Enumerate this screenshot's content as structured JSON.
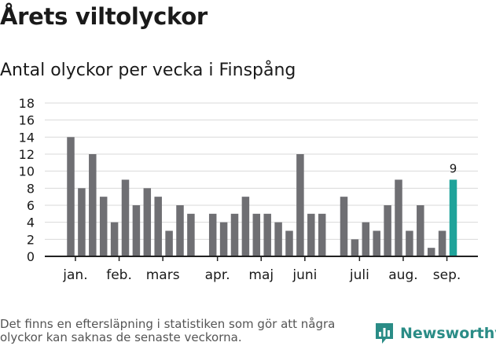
{
  "header": {
    "title": "Årets viltolyckor",
    "subtitle": "Antal olyckor per vecka i Finspång"
  },
  "footer": {
    "note": "Det finns en eftersläpning i statistiken som gör att några olyckor kan saknas de senaste veckorna.",
    "brand": "Newsworthy"
  },
  "colors": {
    "bar": "#6f6f73",
    "highlight": "#1fa39a",
    "grid": "#d9d9d9",
    "axis": "#222222",
    "brand": "#2a8c86"
  },
  "chart_data": {
    "type": "bar",
    "x": [
      1,
      2,
      3,
      4,
      5,
      6,
      7,
      8,
      9,
      10,
      11,
      12,
      13,
      14,
      15,
      16,
      17,
      18,
      19,
      20,
      21,
      22,
      23,
      24,
      25,
      26,
      27,
      28,
      29,
      30,
      31,
      32,
      33,
      34,
      35,
      36
    ],
    "values": [
      14,
      8,
      12,
      7,
      4,
      9,
      6,
      8,
      7,
      3,
      6,
      5,
      null,
      5,
      4,
      5,
      7,
      5,
      5,
      4,
      3,
      12,
      5,
      5,
      null,
      7,
      2,
      4,
      3,
      6,
      9,
      3,
      6,
      1,
      3,
      9
    ],
    "highlight_last": true,
    "value_labels": [
      {
        "index": 35,
        "text": "9"
      }
    ],
    "ylim": [
      0,
      18
    ],
    "yticks": [
      0,
      2,
      4,
      6,
      8,
      10,
      12,
      14,
      16,
      18
    ],
    "month_ticks": [
      {
        "label": "jan.",
        "week": 1.5
      },
      {
        "label": "feb.",
        "week": 5.5
      },
      {
        "label": "mars",
        "week": 9.5
      },
      {
        "label": "apr.",
        "week": 14.5
      },
      {
        "label": "maj",
        "week": 18.5
      },
      {
        "label": "juni",
        "week": 22.5
      },
      {
        "label": "juli",
        "week": 27.5
      },
      {
        "label": "aug.",
        "week": 31.5
      },
      {
        "label": "sep.",
        "week": 35.5
      }
    ],
    "grid": true,
    "xlabel": "",
    "ylabel": ""
  }
}
